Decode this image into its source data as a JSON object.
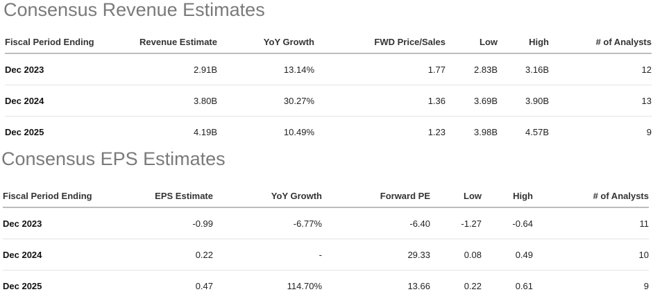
{
  "revenue": {
    "title": "Consensus Revenue Estimates",
    "headers": [
      "Fiscal Period Ending",
      "Revenue Estimate",
      "YoY Growth",
      "FWD Price/Sales",
      "Low",
      "High",
      "# of Analysts"
    ],
    "rows": [
      {
        "period": "Dec 2023",
        "estimate": "2.91B",
        "yoy": "13.14%",
        "fwd": "1.77",
        "low": "2.83B",
        "high": "3.16B",
        "analysts": "12"
      },
      {
        "period": "Dec 2024",
        "estimate": "3.80B",
        "yoy": "30.27%",
        "fwd": "1.36",
        "low": "3.69B",
        "high": "3.90B",
        "analysts": "13"
      },
      {
        "period": "Dec 2025",
        "estimate": "4.19B",
        "yoy": "10.49%",
        "fwd": "1.23",
        "low": "3.98B",
        "high": "4.57B",
        "analysts": "9"
      }
    ]
  },
  "eps": {
    "title": "Consensus EPS Estimates",
    "headers": [
      "Fiscal Period Ending",
      "EPS Estimate",
      "YoY Growth",
      "Forward PE",
      "Low",
      "High",
      "# of Analysts"
    ],
    "rows": [
      {
        "period": "Dec 2023",
        "estimate": "-0.99",
        "yoy": "-6.77%",
        "fwd": "-6.40",
        "low": "-1.27",
        "high": "-0.64",
        "analysts": "11"
      },
      {
        "period": "Dec 2024",
        "estimate": "0.22",
        "yoy": "-",
        "fwd": "29.33",
        "low": "0.08",
        "high": "0.49",
        "analysts": "10"
      },
      {
        "period": "Dec 2025",
        "estimate": "0.47",
        "yoy": "114.70%",
        "fwd": "13.66",
        "low": "0.22",
        "high": "0.61",
        "analysts": "9"
      }
    ]
  }
}
